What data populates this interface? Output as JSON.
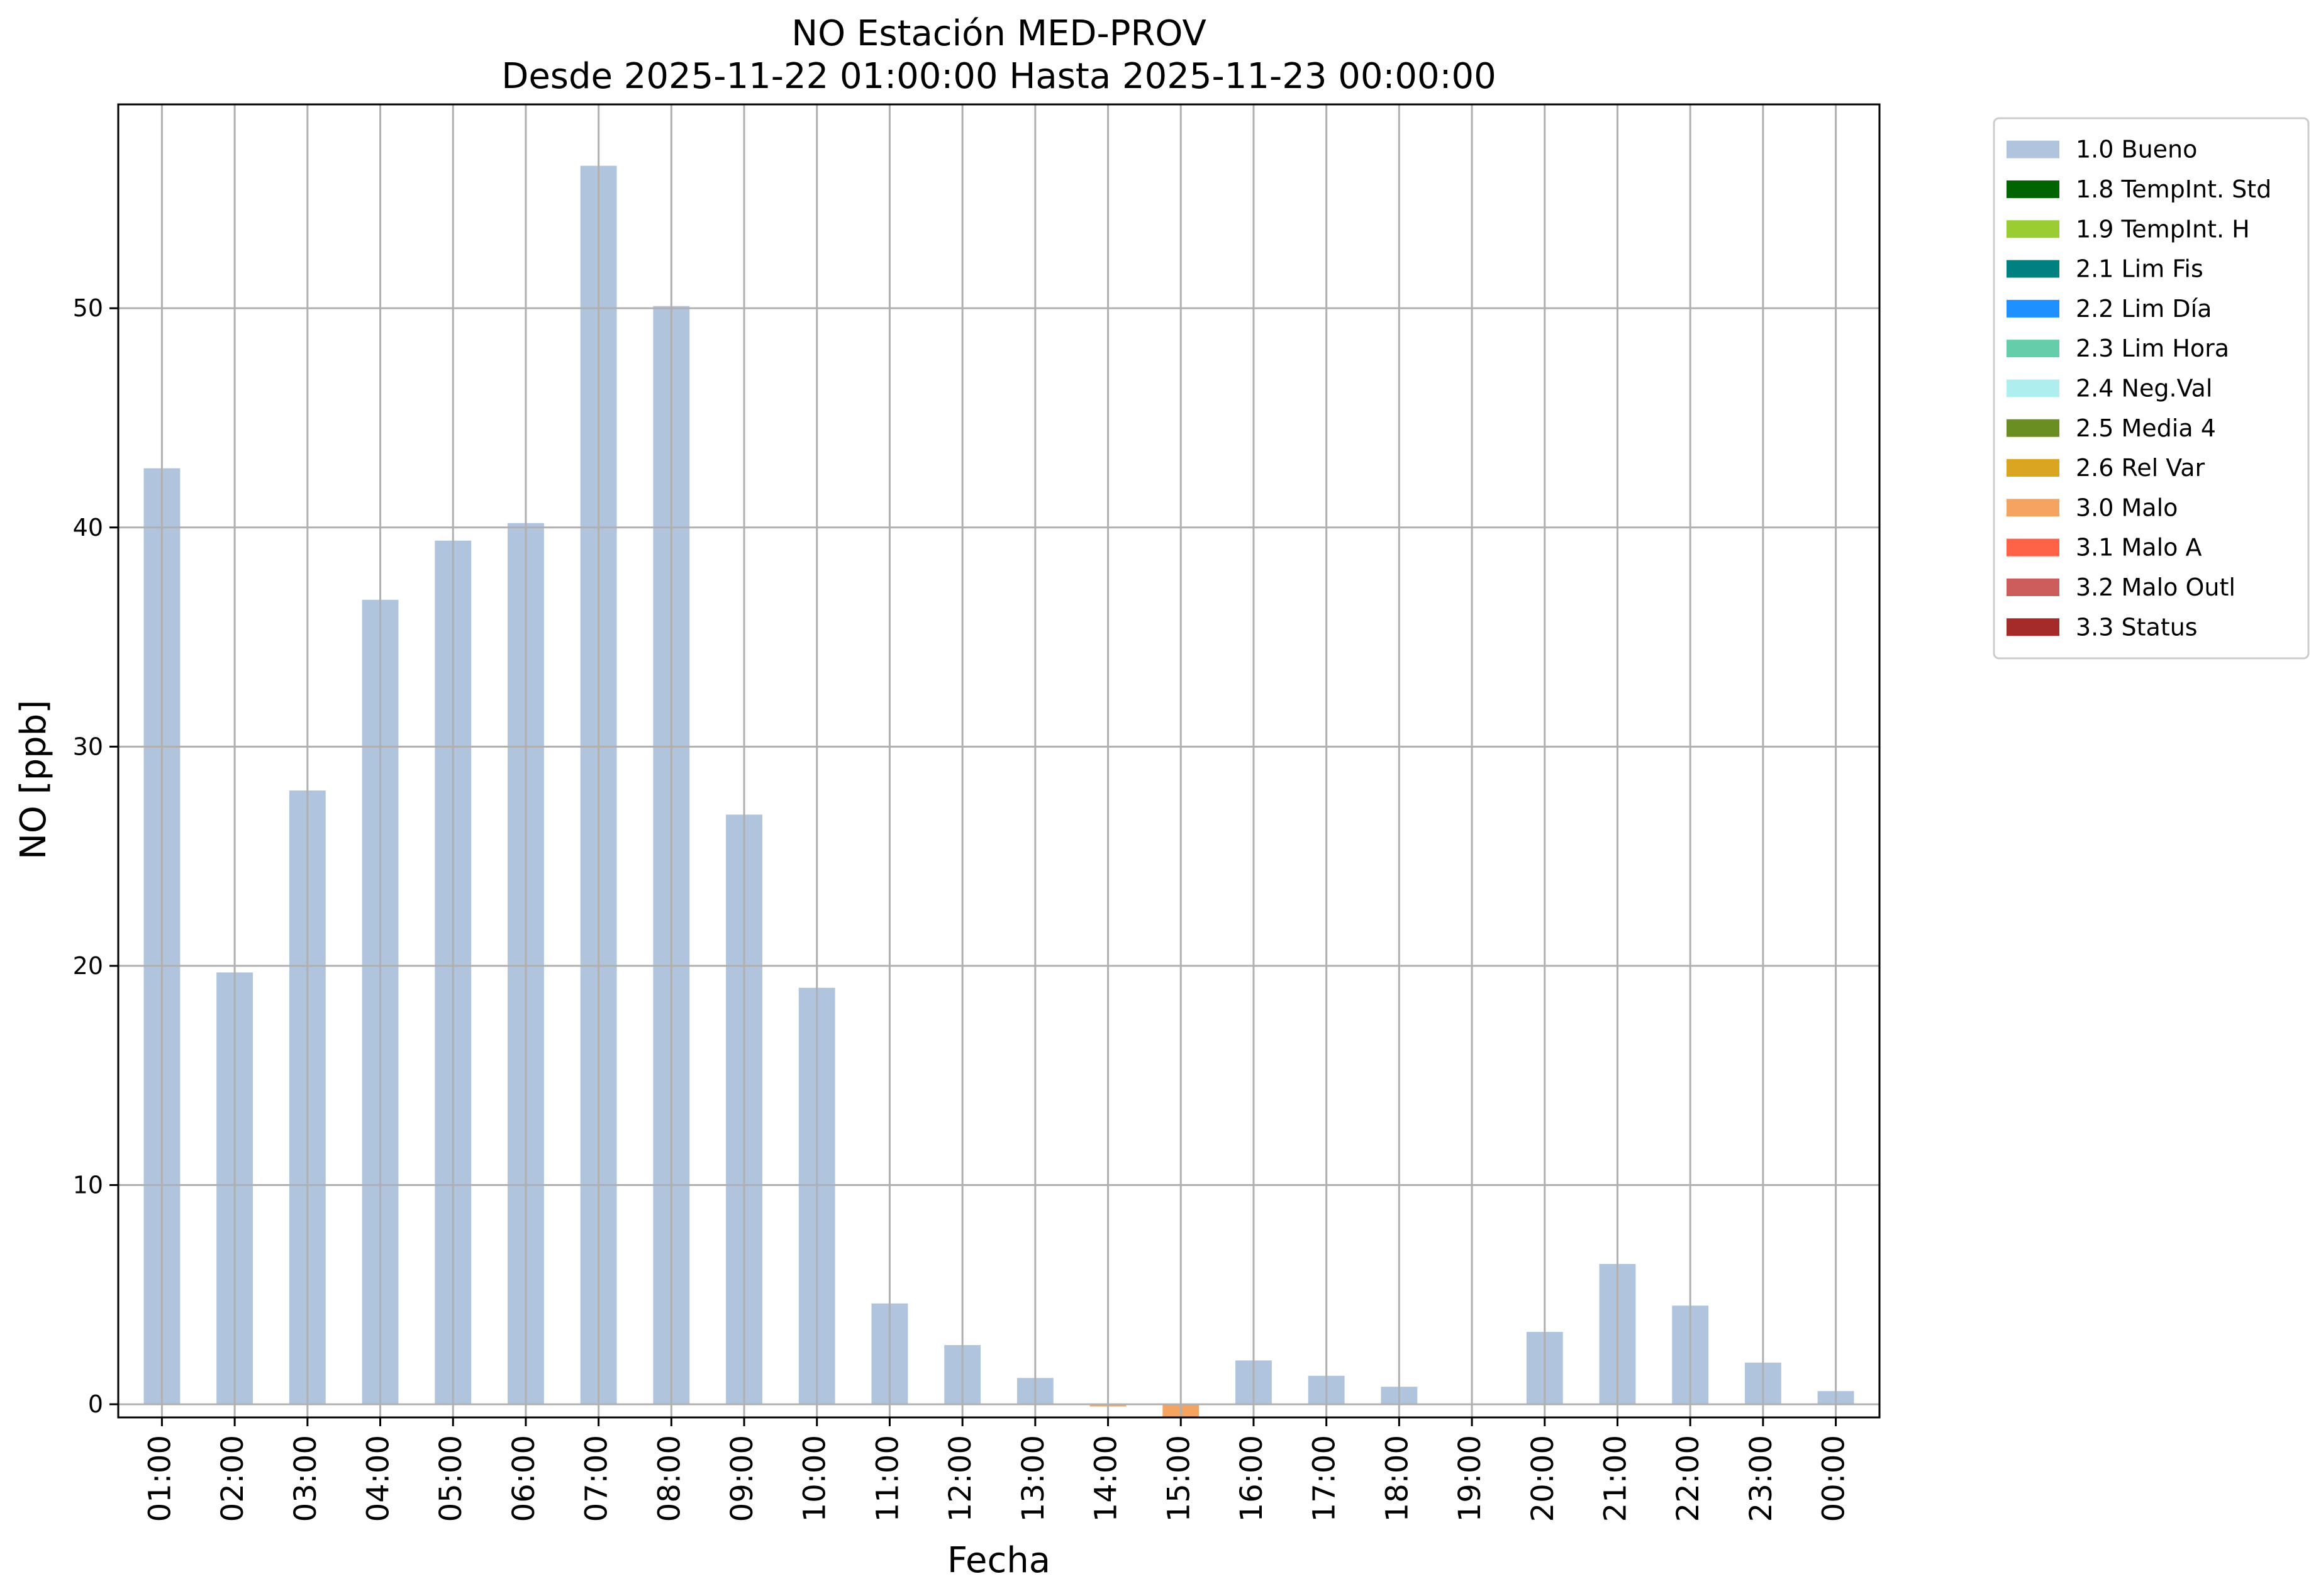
{
  "chart_data": {
    "type": "bar",
    "title_line1": "NO Estación MED-PROV",
    "title_line2": "Desde 2025-11-22 01:00:00 Hasta 2025-11-23 00:00:00",
    "xlabel": "Fecha",
    "ylabel": "NO [ppb]",
    "ylim": [
      -0.6,
      59.3
    ],
    "yticks": [
      0,
      10,
      20,
      30,
      40,
      50
    ],
    "grid": true,
    "legend_position": "outside-top-right",
    "categories": [
      "01:00",
      "02:00",
      "03:00",
      "04:00",
      "05:00",
      "06:00",
      "07:00",
      "08:00",
      "09:00",
      "10:00",
      "11:00",
      "12:00",
      "13:00",
      "14:00",
      "15:00",
      "16:00",
      "17:00",
      "18:00",
      "19:00",
      "20:00",
      "21:00",
      "22:00",
      "23:00",
      "00:00"
    ],
    "series": [
      {
        "name": "1.0 Bueno",
        "color": "#b0c4de",
        "values": [
          42.7,
          19.7,
          28.0,
          36.7,
          39.4,
          40.2,
          56.5,
          50.1,
          26.9,
          19.0,
          4.6,
          2.7,
          1.2,
          null,
          null,
          2.0,
          1.3,
          0.8,
          null,
          3.3,
          6.4,
          4.5,
          1.9,
          0.6
        ]
      },
      {
        "name": "3.0 Malo",
        "color": "#f4a460",
        "values": [
          null,
          null,
          null,
          null,
          null,
          null,
          null,
          null,
          null,
          null,
          null,
          null,
          null,
          -0.1,
          -0.6,
          null,
          null,
          null,
          null,
          null,
          null,
          null,
          null,
          null
        ]
      }
    ],
    "legend": [
      {
        "label": "1.0 Bueno",
        "color": "#b0c4de"
      },
      {
        "label": "1.8 TempInt. Std",
        "color": "#006400"
      },
      {
        "label": "1.9 TempInt. H",
        "color": "#9acd32"
      },
      {
        "label": "2.1 Lim Fis",
        "color": "#008080"
      },
      {
        "label": "2.2 Lim Día",
        "color": "#1e90ff"
      },
      {
        "label": "2.3 Lim Hora",
        "color": "#66cdaa"
      },
      {
        "label": "2.4 Neg.Val",
        "color": "#afeeee"
      },
      {
        "label": "2.5 Media 4",
        "color": "#6b8e23"
      },
      {
        "label": "2.6 Rel Var",
        "color": "#daa520"
      },
      {
        "label": "3.0 Malo",
        "color": "#f4a460"
      },
      {
        "label": "3.1 Malo A",
        "color": "#ff6347"
      },
      {
        "label": "3.2 Malo Outl",
        "color": "#cd5c5c"
      },
      {
        "label": "3.3 Status",
        "color": "#a52a2a"
      }
    ]
  }
}
